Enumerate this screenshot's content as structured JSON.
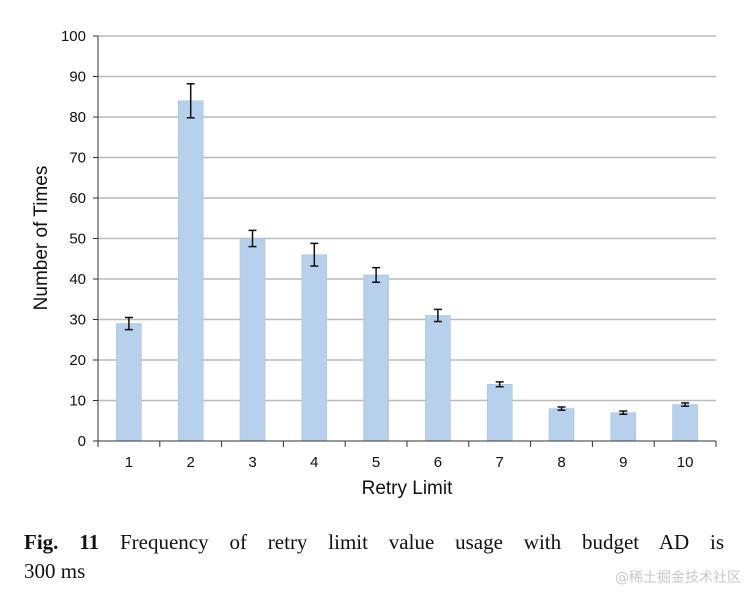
{
  "chart_data": {
    "type": "bar",
    "xlabel": "Retry Limit",
    "ylabel": "Number of Times",
    "ylim": [
      0,
      100
    ],
    "yticks": [
      0,
      10,
      20,
      30,
      40,
      50,
      60,
      70,
      80,
      90,
      100
    ],
    "grid": true,
    "categories": [
      "1",
      "2",
      "3",
      "4",
      "5",
      "6",
      "7",
      "8",
      "9",
      "10"
    ],
    "values": [
      29,
      84,
      50,
      46,
      41,
      31,
      14,
      8,
      7,
      9
    ],
    "error": [
      1.5,
      4.2,
      2.0,
      2.8,
      1.8,
      1.5,
      0.6,
      0.4,
      0.4,
      0.4
    ],
    "bar_color": "#b7d1ec",
    "grid_color": "#bbbbbb"
  },
  "caption": {
    "label": "Fig. 11",
    "text_line1": "Frequency of retry limit value usage with budget AD is",
    "text_line2": "300 ms"
  },
  "watermark": "@稀土掘金技术社区"
}
